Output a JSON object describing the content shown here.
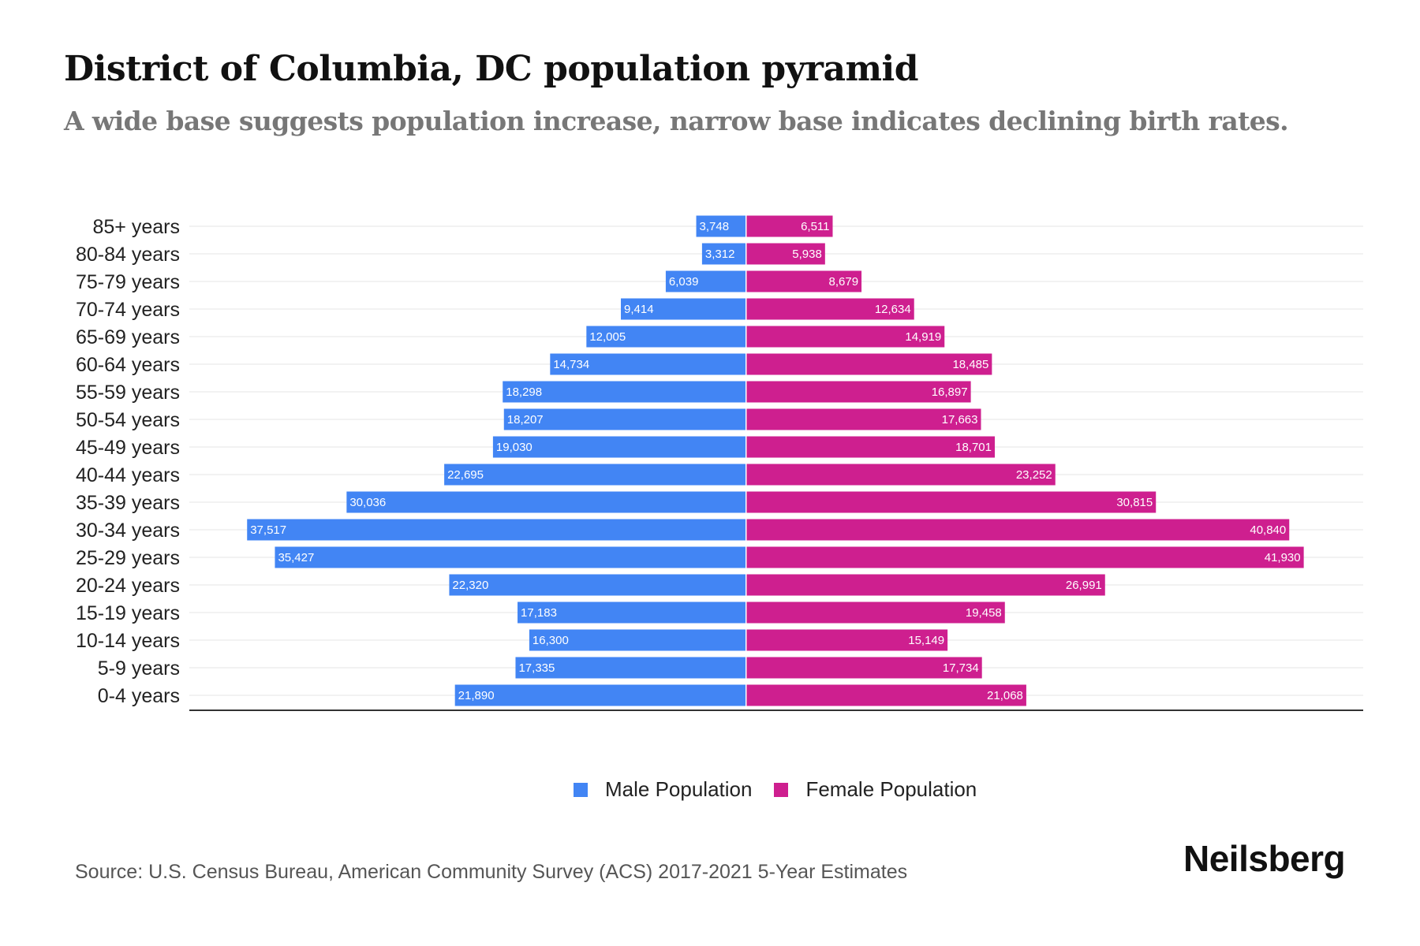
{
  "header": {
    "title": "District of Columbia, DC population pyramid",
    "subtitle": "A wide base suggests population increase, narrow base indicates declining birth rates."
  },
  "footer": {
    "source": "Source: U.S. Census Bureau, American Community Survey (ACS) 2017-2021 5-Year Estimates",
    "brand": "Neilsberg"
  },
  "colors": {
    "male": "#4285F4",
    "female": "#CE1F8F",
    "gridline": "#eeeeee",
    "axis": "#333333"
  },
  "chart_data": {
    "type": "bar",
    "orientation": "horizontal-diverging",
    "title": "District of Columbia, DC population pyramid",
    "subtitle": "A wide base suggests population increase, narrow base indicates declining birth rates.",
    "xlabel": "",
    "ylabel": "",
    "grid": true,
    "legend_position": "bottom-center",
    "categories": [
      "85+ years",
      "80-84 years",
      "75-79 years",
      "70-74 years",
      "65-69 years",
      "60-64 years",
      "55-59 years",
      "50-54 years",
      "45-49 years",
      "40-44 years",
      "35-39 years",
      "30-34 years",
      "25-29 years",
      "20-24 years",
      "15-19 years",
      "10-14 years",
      "5-9 years",
      "0-4 years"
    ],
    "series": [
      {
        "name": "Male Population",
        "side": "left",
        "values": [
          3748,
          3312,
          6039,
          9414,
          12005,
          14734,
          18298,
          18207,
          19030,
          22695,
          30036,
          37517,
          35427,
          22320,
          17183,
          16300,
          17335,
          21890
        ],
        "labels": [
          "3,748",
          "3,312",
          "6,039",
          "9,414",
          "12,005",
          "14,734",
          "18,298",
          "18,207",
          "19,030",
          "22,695",
          "30,036",
          "37,517",
          "35,427",
          "22,320",
          "17,183",
          "16,300",
          "17,335",
          "21,890"
        ]
      },
      {
        "name": "Female Population",
        "side": "right",
        "values": [
          6511,
          5938,
          8679,
          12634,
          14919,
          18485,
          16897,
          17663,
          18701,
          23252,
          30815,
          40840,
          41930,
          26991,
          19458,
          15149,
          17734,
          21068
        ],
        "labels": [
          "6,511",
          "5,938",
          "8,679",
          "12,634",
          "14,919",
          "18,485",
          "16,897",
          "17,663",
          "18,701",
          "23,252",
          "30,815",
          "40,840",
          "41,930",
          "26,991",
          "19,458",
          "15,149",
          "17,734",
          "21,068"
        ]
      }
    ],
    "xlim": [
      -41860,
      46400
    ]
  }
}
